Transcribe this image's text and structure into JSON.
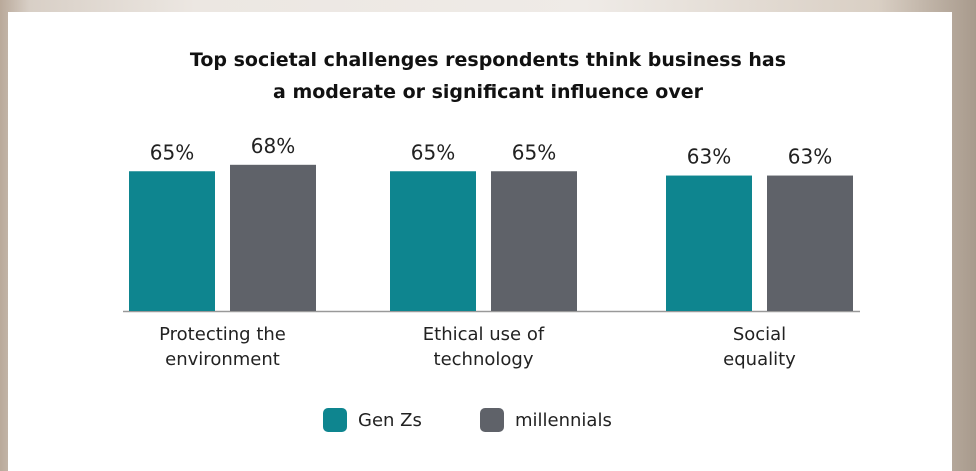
{
  "chart_data": {
    "type": "bar",
    "title": "Top societal challenges respondents think business has a moderate or significant influence over",
    "categories": [
      "Protecting the\nenvironment",
      "Ethical use of\ntechnology",
      "Social\nequality"
    ],
    "series": [
      {
        "name": "Gen Zs",
        "color": "#0e858f",
        "values": [
          65,
          65,
          63
        ],
        "value_labels": [
          "65%",
          "65%",
          "63%"
        ]
      },
      {
        "name": "millennials",
        "color": "#5f6269",
        "values": [
          68,
          65,
          63
        ],
        "value_labels": [
          "68%",
          "65%",
          "63%"
        ]
      }
    ],
    "ylim": [
      0,
      100
    ]
  }
}
